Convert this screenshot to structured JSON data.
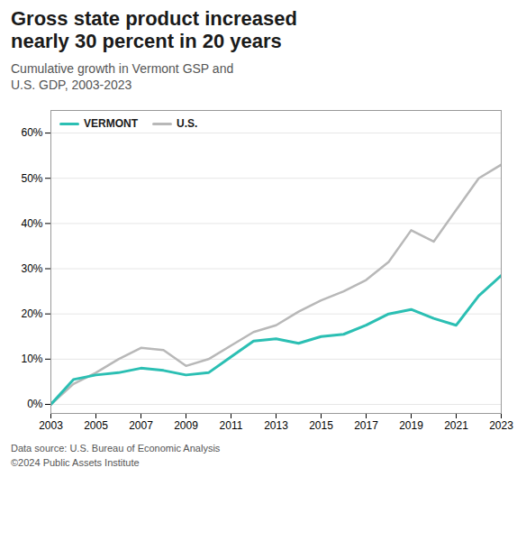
{
  "chart_data": {
    "type": "line",
    "title": "Gross state product increased\nnearly 30 percent in 20 years",
    "subtitle": "Cumulative growth in Vermont GSP and\nU.S. GDP, 2003-2023",
    "caption": "Data source: U.S. Bureau of Economic Analysis\n©2024 Public Assets Institute",
    "x": [
      2003,
      2004,
      2005,
      2006,
      2007,
      2008,
      2009,
      2010,
      2011,
      2012,
      2013,
      2014,
      2015,
      2016,
      2017,
      2018,
      2019,
      2020,
      2021,
      2022,
      2023
    ],
    "series": [
      {
        "name": "VERMONT",
        "color": "#2bbfb3",
        "values": [
          0.0,
          5.5,
          6.5,
          7.0,
          8.0,
          7.5,
          6.5,
          7.0,
          10.5,
          14.0,
          14.5,
          13.5,
          15.0,
          15.5,
          17.5,
          20.0,
          21.0,
          19.0,
          17.5,
          24.0,
          28.5
        ]
      },
      {
        "name": "U.S.",
        "color": "#b8b8b8",
        "values": [
          0.0,
          4.5,
          7.0,
          10.0,
          12.5,
          12.0,
          8.5,
          10.0,
          13.0,
          16.0,
          17.5,
          20.5,
          23.0,
          25.0,
          27.5,
          31.5,
          38.5,
          36.0,
          43.0,
          50.0,
          53.0
        ]
      }
    ],
    "xlim": [
      2003,
      2023
    ],
    "xticks": [
      2003,
      2005,
      2007,
      2009,
      2011,
      2013,
      2015,
      2017,
      2019,
      2021,
      2023
    ],
    "ylim": [
      -2,
      65
    ],
    "yticks": [
      {
        "value": 0,
        "label": "0%"
      },
      {
        "value": 10,
        "label": "10%"
      },
      {
        "value": 20,
        "label": "20%"
      },
      {
        "value": 30,
        "label": "30%"
      },
      {
        "value": 40,
        "label": "40%"
      },
      {
        "value": 50,
        "label": "50%"
      },
      {
        "value": 60,
        "label": "60%"
      }
    ],
    "grid": true,
    "legend": "upper left"
  }
}
